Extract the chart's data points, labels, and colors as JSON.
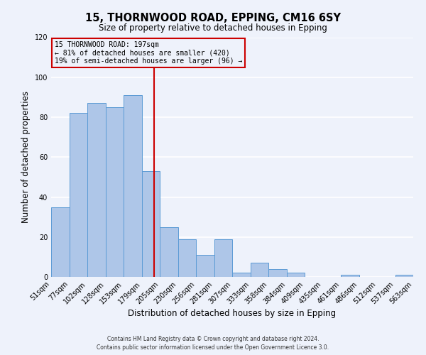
{
  "title": "15, THORNWOOD ROAD, EPPING, CM16 6SY",
  "subtitle": "Size of property relative to detached houses in Epping",
  "xlabel": "Distribution of detached houses by size in Epping",
  "ylabel": "Number of detached properties",
  "bar_values_full": [
    35,
    82,
    87,
    85,
    91,
    53,
    25,
    19,
    11,
    19,
    2,
    7,
    4,
    2,
    0,
    0,
    1,
    0,
    0,
    1
  ],
  "bar_labels": [
    "51sqm",
    "77sqm",
    "102sqm",
    "128sqm",
    "153sqm",
    "179sqm",
    "205sqm",
    "230sqm",
    "256sqm",
    "281sqm",
    "307sqm",
    "333sqm",
    "358sqm",
    "384sqm",
    "409sqm",
    "435sqm",
    "461sqm",
    "486sqm",
    "512sqm",
    "537sqm",
    "563sqm"
  ],
  "bar_color": "#aec6e8",
  "bar_edge_color": "#5b9bd5",
  "vline_color": "#cc0000",
  "ylim": [
    0,
    120
  ],
  "yticks": [
    0,
    20,
    40,
    60,
    80,
    100,
    120
  ],
  "annotation_title": "15 THORNWOOD ROAD: 197sqm",
  "annotation_line1": "← 81% of detached houses are smaller (420)",
  "annotation_line2": "19% of semi-detached houses are larger (96) →",
  "annotation_box_color": "#cc0000",
  "footer_line1": "Contains HM Land Registry data © Crown copyright and database right 2024.",
  "footer_line2": "Contains public sector information licensed under the Open Government Licence 3.0.",
  "background_color": "#eef2fb",
  "grid_color": "#ffffff"
}
